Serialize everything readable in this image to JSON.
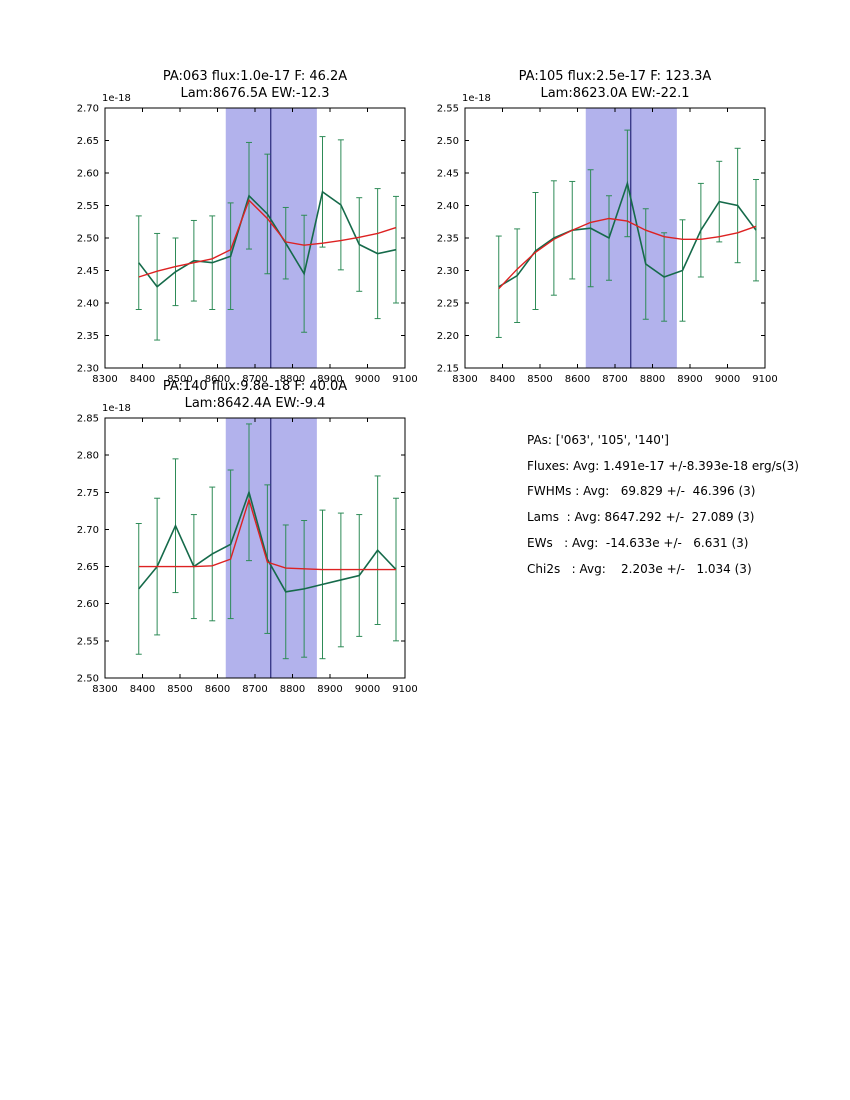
{
  "colors": {
    "data_line": "#156a4a",
    "error_bar": "#2e8b57",
    "fit_line": "#dd2222",
    "band_fill": "#b2b2ec",
    "center_line": "#28287a",
    "axis": "#000000"
  },
  "stats_panel": {
    "lines": [
      "PAs: ['063', '105', '140']",
      "Fluxes: Avg: 1.491e-17 +/-8.393e-18 erg/s(3)",
      "FWHMs : Avg:   69.829 +/-  46.396 (3)",
      "Lams  : Avg: 8647.292 +/-  27.089 (3)",
      "EWs   : Avg:  -14.633e +/-   6.631 (3)",
      "Chi2s   : Avg:    2.203e +/-   1.034 (3)"
    ]
  },
  "chart_data": [
    {
      "type": "line",
      "title_line1": "PA:063 flux:1.0e-17 F: 46.2A",
      "title_line2": "Lam:8676.5A EW:-12.3",
      "offset_label": "1e-18",
      "xlim": [
        8300,
        9100
      ],
      "ylim": [
        2.3,
        2.7
      ],
      "xticks": [
        8300,
        8400,
        8500,
        8600,
        8700,
        8800,
        8900,
        9000,
        9100
      ],
      "yticks": [
        2.3,
        2.35,
        2.4,
        2.45,
        2.5,
        2.55,
        2.6,
        2.65,
        2.7
      ],
      "band": [
        8622,
        8865
      ],
      "vline": 8742,
      "x": [
        8390,
        8439,
        8488,
        8537,
        8586,
        8635,
        8684,
        8733,
        8782,
        8831,
        8880,
        8929,
        8978,
        9027,
        9076
      ],
      "series": [
        {
          "name": "spectrum",
          "values": [
            2.462,
            2.425,
            2.448,
            2.465,
            2.462,
            2.472,
            2.565,
            2.537,
            2.492,
            2.445,
            2.571,
            2.551,
            2.49,
            2.476,
            2.482
          ],
          "errors": [
            0.072,
            0.082,
            0.052,
            0.062,
            0.072,
            0.082,
            0.082,
            0.092,
            0.055,
            0.09,
            0.085,
            0.1,
            0.072,
            0.1,
            0.082
          ]
        },
        {
          "name": "fit",
          "values": [
            2.44,
            2.449,
            2.456,
            2.462,
            2.468,
            2.482,
            2.558,
            2.53,
            2.494,
            2.489,
            2.492,
            2.496,
            2.501,
            2.507,
            2.516
          ]
        }
      ]
    },
    {
      "type": "line",
      "title_line1": "PA:105 flux:2.5e-17 F: 123.3A",
      "title_line2": "Lam:8623.0A EW:-22.1",
      "offset_label": "1e-18",
      "xlim": [
        8300,
        9100
      ],
      "ylim": [
        2.15,
        2.55
      ],
      "xticks": [
        8300,
        8400,
        8500,
        8600,
        8700,
        8800,
        8900,
        9000,
        9100
      ],
      "yticks": [
        2.15,
        2.2,
        2.25,
        2.3,
        2.35,
        2.4,
        2.45,
        2.5,
        2.55
      ],
      "band": [
        8622,
        8865
      ],
      "vline": 8742,
      "x": [
        8390,
        8439,
        8488,
        8537,
        8586,
        8635,
        8684,
        8733,
        8782,
        8831,
        8880,
        8929,
        8978,
        9027,
        9076
      ],
      "series": [
        {
          "name": "spectrum",
          "values": [
            2.275,
            2.292,
            2.33,
            2.35,
            2.362,
            2.365,
            2.35,
            2.434,
            2.31,
            2.29,
            2.3,
            2.362,
            2.406,
            2.4,
            2.362
          ],
          "errors": [
            0.078,
            0.072,
            0.09,
            0.088,
            0.075,
            0.09,
            0.065,
            0.082,
            0.085,
            0.068,
            0.078,
            0.072,
            0.062,
            0.088,
            0.078
          ]
        },
        {
          "name": "fit",
          "values": [
            2.272,
            2.302,
            2.328,
            2.348,
            2.362,
            2.374,
            2.38,
            2.376,
            2.362,
            2.352,
            2.348,
            2.348,
            2.352,
            2.358,
            2.368
          ]
        }
      ]
    },
    {
      "type": "line",
      "title_line1": "PA:140 flux:9.8e-18 F: 40.0A",
      "title_line2": "Lam:8642.4A EW:-9.4",
      "offset_label": "1e-18",
      "xlim": [
        8300,
        9100
      ],
      "ylim": [
        2.5,
        2.85
      ],
      "xticks": [
        8300,
        8400,
        8500,
        8600,
        8700,
        8800,
        8900,
        9000,
        9100
      ],
      "yticks": [
        2.5,
        2.55,
        2.6,
        2.65,
        2.7,
        2.75,
        2.8,
        2.85
      ],
      "band": [
        8622,
        8865
      ],
      "vline": 8742,
      "x": [
        8390,
        8439,
        8488,
        8537,
        8586,
        8635,
        8684,
        8733,
        8782,
        8831,
        8880,
        8929,
        8978,
        9027,
        9076
      ],
      "series": [
        {
          "name": "spectrum",
          "values": [
            2.62,
            2.65,
            2.705,
            2.65,
            2.667,
            2.68,
            2.75,
            2.66,
            2.616,
            2.62,
            2.626,
            2.632,
            2.638,
            2.672,
            2.646
          ],
          "errors": [
            0.088,
            0.092,
            0.09,
            0.07,
            0.09,
            0.1,
            0.092,
            0.1,
            0.09,
            0.092,
            0.1,
            0.09,
            0.082,
            0.1,
            0.096
          ]
        },
        {
          "name": "fit",
          "values": [
            2.65,
            2.65,
            2.65,
            2.65,
            2.651,
            2.66,
            2.74,
            2.656,
            2.648,
            2.647,
            2.646,
            2.646,
            2.646,
            2.646,
            2.646
          ]
        }
      ]
    }
  ]
}
